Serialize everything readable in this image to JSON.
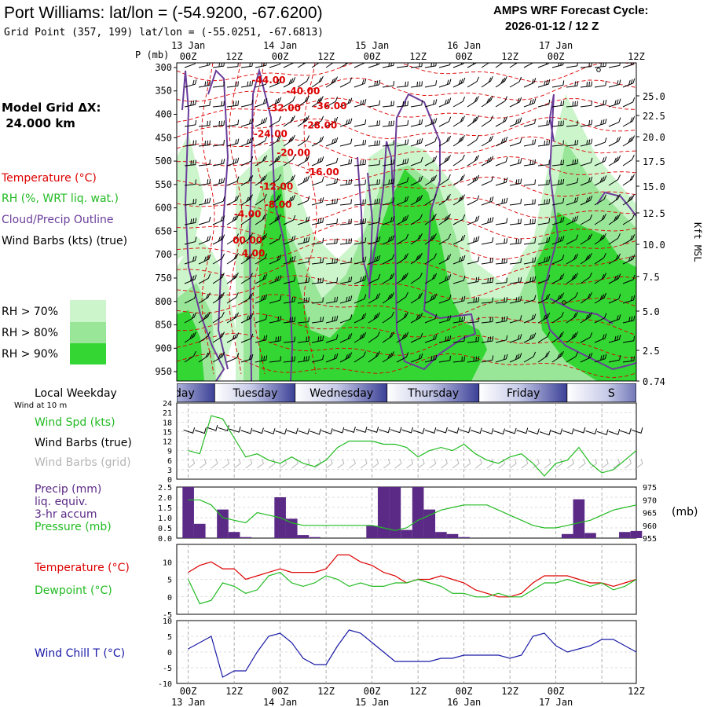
{
  "header": {
    "station_title": "Port Williams:  lat/lon = (-54.9200, -67.6200)",
    "grid_point": "Grid Point (357, 199) lat/lon = (-55.0251, -67.6813)",
    "cycle_title": "AMPS WRF Forecast Cycle:",
    "cycle_value": "2026-01-12 / 12  Z",
    "model_grid_label": "Model Grid ΔX:",
    "model_grid_value": " 24.000 km"
  },
  "time_axis": {
    "top_time_labels": [
      "00Z",
      "12Z",
      "00Z",
      "12Z",
      "00Z",
      "12Z",
      "00Z",
      "12Z",
      "00Z",
      "12Z"
    ],
    "top_date_labels": [
      "13 Jan",
      "14 Jan",
      "15 Jan",
      "16 Jan",
      "17 Jan"
    ],
    "bottom_time_labels": [
      "00Z",
      "12Z",
      "00Z",
      "12Z",
      "00Z",
      "12Z",
      "00Z",
      "12Z",
      "00Z",
      "12Z"
    ],
    "bottom_date_labels": [
      "13 Jan",
      "14 Jan",
      "15 Jan",
      "16 Jan",
      "17 Jan"
    ]
  },
  "weekday_bar": {
    "title": "Local Weekday",
    "wind_note": "Wind at 10 m",
    "days": [
      "Monday",
      "Tuesday",
      "Wednesday",
      "Thursday",
      "Friday",
      "S"
    ]
  },
  "legend": {
    "temperature": "Temperature (°C)",
    "rh": "RH (%, WRT liq. wat.)",
    "cloud": "Cloud/Precip Outline",
    "wind_barbs": "Wind Barbs (kts) (true)",
    "rh70": "RH > 70%",
    "rh80": "RH > 80%",
    "rh90": "RH > 90%",
    "kft_label": "Kft MSL",
    "p_label": "P (mb)",
    "wind_spd": "Wind Spd (kts)",
    "wind_barbs_true": "Wind Barbs (true)",
    "wind_barbs_grid": "Wind Barbs (grid)",
    "precip_l1": "Precip (mm)",
    "precip_l2": "liq. equiv.",
    "precip_l3": "3-hr accum",
    "pressure": "Pressure (mb)",
    "mb_unit": "(mb)",
    "temp2": "Temperature (°C)",
    "dewpoint": "Dewpoint (°C)",
    "windchill": "Wind Chill T (°C)"
  },
  "colors": {
    "rh70": "#ccf5cc",
    "rh80": "#99e699",
    "rh90": "#33d633",
    "temp": "#dd0000",
    "cloud": "#6a3d9a",
    "wind": "#22bb22",
    "precip": "#5b2a86",
    "windchill": "#1a1aa8"
  },
  "chart_data": [
    {
      "type": "contour",
      "title": "Time-height cross section",
      "ylabel": "P (mb)",
      "y_ticks": [
        "300",
        "350",
        "400",
        "450",
        "500",
        "550",
        "600",
        "650",
        "700",
        "750",
        "800",
        "850",
        "900",
        "950"
      ],
      "kft_ticks": [
        "25.0",
        "22.5",
        "20.0",
        "17.5",
        "15.0",
        "12.5",
        "10.0",
        "7.5",
        "5.0",
        "2.5",
        "0.74"
      ],
      "isotherm_labels": [
        {
          "text": "-44.00",
          "t": 21.0,
          "p": 334
        },
        {
          "text": "-40.00",
          "t": 30.0,
          "p": 357
        },
        {
          "text": "-36.00",
          "t": 37.0,
          "p": 389
        },
        {
          "text": "-32.00",
          "t": 25.0,
          "p": 393
        },
        {
          "text": "-28.00",
          "t": 34.5,
          "p": 430
        },
        {
          "text": "-24.00",
          "t": 21.5,
          "p": 449
        },
        {
          "text": "-20.00",
          "t": 27.5,
          "p": 489
        },
        {
          "text": "-16.00",
          "t": 35.0,
          "p": 530
        },
        {
          "text": "-12.00",
          "t": 23.0,
          "p": 561
        },
        {
          "text": "-8.00",
          "t": 23.5,
          "p": 600
        },
        {
          "text": "-4.00",
          "t": 15.5,
          "p": 620
        },
        {
          "text": "00.00",
          "t": 15.5,
          "p": 676
        },
        {
          "text": "4.00",
          "t": 17.0,
          "p": 704
        }
      ]
    },
    {
      "type": "line",
      "title": "Wind Spd (kts)",
      "x_hours": [
        0,
        3,
        6,
        9,
        12,
        15,
        18,
        21,
        24,
        27,
        30,
        33,
        36,
        39,
        42,
        45,
        48,
        51,
        54,
        57,
        60,
        63,
        66,
        69,
        72,
        75,
        78,
        81,
        84,
        87,
        90,
        93,
        96,
        99,
        102,
        105,
        108,
        111,
        114,
        117
      ],
      "series": [
        {
          "name": "Wind Spd",
          "values": [
            9,
            8,
            20,
            19,
            13,
            7,
            8,
            6,
            5,
            7,
            5,
            4,
            6,
            10,
            12,
            12,
            12,
            11,
            11,
            10,
            7,
            9,
            10,
            9,
            11,
            8,
            6,
            5,
            7,
            8,
            5,
            1,
            5,
            6,
            10,
            5,
            2,
            3,
            6,
            9
          ]
        }
      ],
      "ylim": [
        0,
        24
      ],
      "y_ticks": [
        "0",
        "3",
        "6",
        "9",
        "12",
        "15",
        "18",
        "21",
        "24"
      ]
    },
    {
      "type": "bar",
      "title": "Precip (mm) 3-hr accum / Pressure (mb)",
      "x_hours": [
        0,
        3,
        6,
        9,
        12,
        15,
        18,
        21,
        24,
        27,
        30,
        33,
        36,
        39,
        42,
        45,
        48,
        51,
        54,
        57,
        60,
        63,
        66,
        69,
        72,
        75,
        78,
        81,
        84,
        87,
        90,
        93,
        96,
        99,
        102,
        105,
        108,
        111,
        114,
        117
      ],
      "series": [
        {
          "name": "Precip",
          "values": [
            2.5,
            0.7,
            0.0,
            1.4,
            0.3,
            0.05,
            0.0,
            0.0,
            2.0,
            0.95,
            0.15,
            0.05,
            0.0,
            0.0,
            0.0,
            0.0,
            0.6,
            2.5,
            2.5,
            0.4,
            2.5,
            1.4,
            0.3,
            0.2,
            0.05,
            0.0,
            0.0,
            0.0,
            0.0,
            0.0,
            0.0,
            0.0,
            0.0,
            0.2,
            1.9,
            0.25,
            0.0,
            0.0,
            0.3,
            0.35
          ]
        },
        {
          "name": "Pressure",
          "values": [
            970,
            970,
            968,
            963,
            962,
            961,
            965,
            964,
            963,
            961,
            960,
            960,
            960,
            960,
            960,
            960,
            960,
            959,
            958,
            959,
            962,
            964,
            966,
            967,
            968,
            968,
            968,
            966,
            964,
            962,
            960,
            959,
            959,
            960,
            961,
            962,
            964,
            966,
            967,
            968
          ]
        }
      ],
      "precip_ylim": [
        0,
        2.5
      ],
      "pressure_ylim": [
        955,
        975
      ],
      "y_ticks": [
        "0.0",
        "0.5",
        "1.0",
        "1.5",
        "2.0",
        "2.5"
      ],
      "y2_ticks": [
        "955",
        "960",
        "965",
        "970",
        "975"
      ]
    },
    {
      "type": "line",
      "title": "Temperature / Dewpoint (°C)",
      "x_hours": [
        0,
        3,
        6,
        9,
        12,
        15,
        18,
        21,
        24,
        27,
        30,
        33,
        36,
        39,
        42,
        45,
        48,
        51,
        54,
        57,
        60,
        63,
        66,
        69,
        72,
        75,
        78,
        81,
        84,
        87,
        90,
        93,
        96,
        99,
        102,
        105,
        108,
        111,
        114,
        117
      ],
      "series": [
        {
          "name": "Temperature",
          "values": [
            7,
            9,
            10,
            8,
            8,
            5,
            6,
            7,
            8,
            7,
            7,
            7,
            8,
            12,
            12,
            10,
            9,
            7,
            6,
            4,
            5,
            5,
            6,
            5,
            4,
            2,
            1,
            0,
            0,
            1,
            4,
            6,
            6,
            6,
            5,
            4,
            4,
            3,
            4,
            5
          ]
        },
        {
          "name": "Dewpoint",
          "values": [
            5,
            -2,
            -1,
            4,
            3,
            1,
            2,
            6,
            7,
            4,
            3,
            4,
            6,
            5,
            3,
            4,
            3,
            3,
            4,
            4,
            5,
            4,
            3,
            1,
            1,
            0,
            0,
            1,
            0,
            0,
            2,
            4,
            4,
            5,
            4,
            3,
            4,
            2,
            3,
            5
          ]
        }
      ],
      "ylim": [
        -5,
        15
      ],
      "y_ticks": [
        "-5",
        "0",
        "5",
        "10"
      ]
    },
    {
      "type": "line",
      "title": "Wind Chill T (°C)",
      "x_hours": [
        0,
        3,
        6,
        9,
        12,
        15,
        18,
        21,
        24,
        27,
        30,
        33,
        36,
        39,
        42,
        45,
        48,
        51,
        54,
        57,
        60,
        63,
        66,
        69,
        72,
        75,
        78,
        81,
        84,
        87,
        90,
        93,
        96,
        99,
        102,
        105,
        108,
        111,
        114,
        117
      ],
      "series": [
        {
          "name": "Wind Chill",
          "values": [
            1,
            3,
            5,
            -8,
            -6,
            -6,
            0,
            5,
            6,
            3,
            -2,
            -4,
            -4,
            2,
            7,
            6,
            3,
            0,
            -3,
            -3,
            -3,
            -3,
            -2,
            -2,
            -1,
            -1,
            -1,
            -1,
            -2,
            -1,
            5,
            6,
            2,
            0,
            1,
            2,
            4,
            4,
            2,
            0
          ]
        }
      ],
      "ylim": [
        -10,
        10
      ],
      "y_ticks": [
        "-10",
        "-5",
        "0",
        "5",
        "10"
      ]
    }
  ]
}
